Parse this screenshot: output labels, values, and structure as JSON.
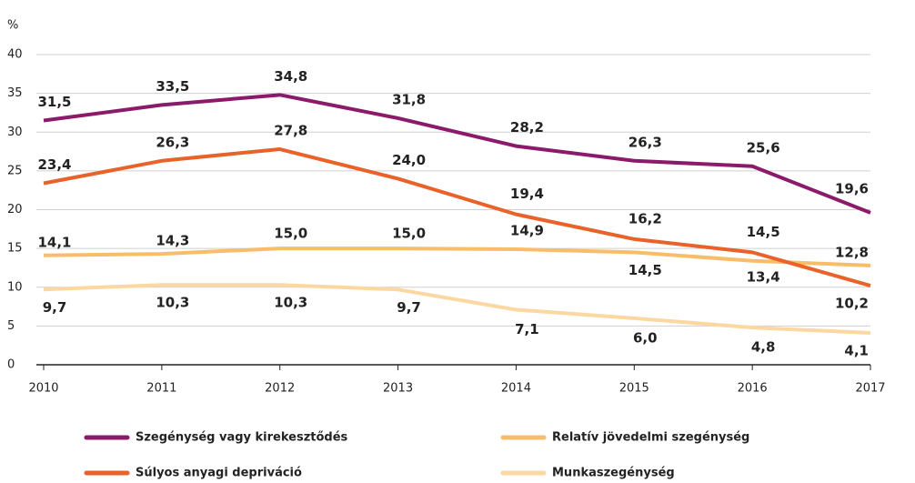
{
  "chart_data": {
    "type": "line",
    "y_label": "%",
    "categories": [
      "2010",
      "2011",
      "2012",
      "2013",
      "2014",
      "2015",
      "2016",
      "2017"
    ],
    "ylim": [
      0,
      40
    ],
    "yticks": [
      0,
      5,
      10,
      15,
      20,
      25,
      30,
      35,
      40
    ],
    "grid": true,
    "series": [
      {
        "name": "Szegénység vagy kirekesztődés",
        "color": "#8b1a6b",
        "values": [
          31.5,
          33.5,
          34.8,
          31.8,
          28.2,
          26.3,
          25.6,
          19.6
        ],
        "value_labels": [
          "31,5",
          "33,5",
          "34,8",
          "31,8",
          "28,2",
          "26,3",
          "25,6",
          "19,6"
        ]
      },
      {
        "name": "Relatív jövedelmi szegénység",
        "color": "#f8bd69",
        "values": [
          14.1,
          14.3,
          15.0,
          15.0,
          14.9,
          14.5,
          13.4,
          12.8
        ],
        "value_labels": [
          "14,1",
          "14,3",
          "15,0",
          "15,0",
          "14,9",
          "14,5",
          "13,4",
          "12,8"
        ]
      },
      {
        "name": "Súlyos anyagi depriváció",
        "color": "#e8622a",
        "values": [
          23.4,
          26.3,
          27.8,
          24.0,
          19.4,
          16.2,
          14.5,
          10.2
        ],
        "value_labels": [
          "23,4",
          "26,3",
          "27,8",
          "24,0",
          "19,4",
          "16,2",
          "14,5",
          "10,2"
        ]
      },
      {
        "name": "Munkaszegénység",
        "color": "#fbd8a2",
        "values": [
          9.7,
          10.3,
          10.3,
          9.7,
          7.1,
          6.0,
          4.8,
          4.1
        ],
        "value_labels": [
          "9,7",
          "10,3",
          "10,3",
          "9,7",
          "7,1",
          "6,0",
          "4,8",
          "4,1"
        ]
      }
    ]
  }
}
